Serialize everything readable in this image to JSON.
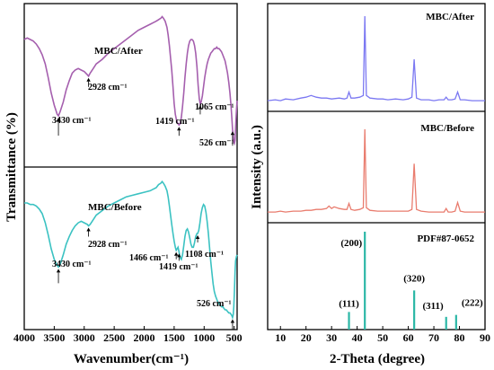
{
  "chart_data": [
    {
      "type": "line",
      "panel": "FTIR",
      "title": "",
      "xlabel": "Wavenumber(cm⁻¹)",
      "ylabel": "Transmittance (%)",
      "xlim": [
        4000,
        450
      ],
      "x_reversed": true,
      "xticks": [
        "4000",
        "3500",
        "3000",
        "2500",
        "2000",
        "1500",
        "1000",
        "500"
      ],
      "series": [
        {
          "name": "MBC/After",
          "color": "#a55fae",
          "x": [
            4000,
            3950,
            3900,
            3850,
            3800,
            3750,
            3700,
            3650,
            3600,
            3550,
            3500,
            3450,
            3430,
            3400,
            3350,
            3300,
            3250,
            3200,
            3150,
            3100,
            3050,
            3000,
            2950,
            2928,
            2900,
            2850,
            2800,
            2700,
            2600,
            2500,
            2400,
            2300,
            2200,
            2100,
            2000,
            1900,
            1850,
            1800,
            1760,
            1720,
            1700,
            1680,
            1650,
            1620,
            1600,
            1580,
            1560,
            1540,
            1520,
            1500,
            1480,
            1460,
            1440,
            1419,
            1400,
            1380,
            1360,
            1340,
            1320,
            1300,
            1280,
            1260,
            1240,
            1220,
            1200,
            1180,
            1160,
            1140,
            1120,
            1100,
            1080,
            1065,
            1050,
            1030,
            1010,
            990,
            970,
            950,
            930,
            910,
            890,
            870,
            850,
            830,
            810,
            790,
            770,
            750,
            730,
            710,
            690,
            670,
            650,
            630,
            610,
            590,
            570,
            550,
            535,
            526,
            515,
            505,
            495,
            485,
            475,
            460,
            450
          ],
          "y": [
            0.8,
            0.81,
            0.8,
            0.79,
            0.77,
            0.74,
            0.7,
            0.64,
            0.55,
            0.45,
            0.37,
            0.31,
            0.3,
            0.33,
            0.39,
            0.47,
            0.53,
            0.58,
            0.6,
            0.61,
            0.6,
            0.59,
            0.57,
            0.56,
            0.58,
            0.61,
            0.64,
            0.67,
            0.71,
            0.74,
            0.77,
            0.8,
            0.83,
            0.86,
            0.88,
            0.9,
            0.91,
            0.92,
            0.93,
            0.94,
            0.95,
            0.94,
            0.92,
            0.88,
            0.83,
            0.76,
            0.68,
            0.6,
            0.49,
            0.38,
            0.31,
            0.27,
            0.25,
            0.24,
            0.25,
            0.29,
            0.36,
            0.45,
            0.55,
            0.64,
            0.71,
            0.76,
            0.79,
            0.8,
            0.8,
            0.79,
            0.76,
            0.71,
            0.62,
            0.5,
            0.41,
            0.38,
            0.39,
            0.43,
            0.49,
            0.55,
            0.6,
            0.64,
            0.67,
            0.69,
            0.71,
            0.72,
            0.73,
            0.74,
            0.74,
            0.75,
            0.74,
            0.74,
            0.73,
            0.72,
            0.7,
            0.68,
            0.66,
            0.62,
            0.58,
            0.52,
            0.45,
            0.36,
            0.27,
            0.21,
            0.17,
            0.13,
            0.12,
            0.14,
            0.22,
            0.34,
            0.4
          ]
        },
        {
          "name": "MBC/Before",
          "color": "#3bc2c2",
          "x": [
            4000,
            3950,
            3900,
            3850,
            3800,
            3750,
            3700,
            3650,
            3600,
            3550,
            3500,
            3450,
            3430,
            3400,
            3350,
            3300,
            3250,
            3200,
            3150,
            3100,
            3050,
            3000,
            2950,
            2928,
            2900,
            2850,
            2800,
            2700,
            2600,
            2500,
            2400,
            2300,
            2200,
            2100,
            2000,
            1900,
            1850,
            1800,
            1760,
            1720,
            1700,
            1680,
            1650,
            1620,
            1600,
            1580,
            1560,
            1540,
            1520,
            1500,
            1480,
            1466,
            1450,
            1435,
            1419,
            1400,
            1380,
            1360,
            1340,
            1320,
            1300,
            1280,
            1260,
            1240,
            1220,
            1200,
            1180,
            1160,
            1140,
            1120,
            1108,
            1090,
            1070,
            1050,
            1030,
            1010,
            990,
            970,
            950,
            930,
            910,
            890,
            870,
            850,
            830,
            810,
            790,
            770,
            750,
            730,
            710,
            690,
            670,
            650,
            630,
            610,
            590,
            570,
            550,
            535,
            526,
            515,
            505,
            495,
            485,
            475,
            460,
            450
          ],
          "y": [
            0.8,
            0.8,
            0.79,
            0.79,
            0.78,
            0.76,
            0.73,
            0.67,
            0.59,
            0.5,
            0.43,
            0.39,
            0.38,
            0.4,
            0.46,
            0.53,
            0.58,
            0.62,
            0.65,
            0.67,
            0.68,
            0.67,
            0.66,
            0.65,
            0.66,
            0.69,
            0.72,
            0.75,
            0.78,
            0.8,
            0.82,
            0.84,
            0.85,
            0.86,
            0.87,
            0.88,
            0.89,
            0.9,
            0.92,
            0.93,
            0.94,
            0.93,
            0.91,
            0.88,
            0.84,
            0.78,
            0.72,
            0.66,
            0.6,
            0.55,
            0.51,
            0.49,
            0.5,
            0.51,
            0.48,
            0.44,
            0.43,
            0.46,
            0.52,
            0.58,
            0.62,
            0.63,
            0.61,
            0.57,
            0.53,
            0.51,
            0.51,
            0.54,
            0.58,
            0.6,
            0.6,
            0.62,
            0.67,
            0.73,
            0.77,
            0.79,
            0.78,
            0.74,
            0.68,
            0.6,
            0.51,
            0.42,
            0.34,
            0.27,
            0.22,
            0.19,
            0.17,
            0.15,
            0.14,
            0.13,
            0.12,
            0.12,
            0.11,
            0.1,
            0.1,
            0.09,
            0.08,
            0.08,
            0.07,
            0.06,
            0.05,
            0.07,
            0.12,
            0.22,
            0.35,
            0.42,
            0.45,
            0.46
          ]
        }
      ],
      "annotations": [
        {
          "series": "MBC/After",
          "text": "3430 cm⁻¹",
          "x": 3430
        },
        {
          "series": "MBC/After",
          "text": "2928 cm⁻¹",
          "x": 2928
        },
        {
          "series": "MBC/After",
          "text": "1419 cm⁻¹",
          "x": 1419
        },
        {
          "series": "MBC/After",
          "text": "1065 cm⁻¹",
          "x": 1065
        },
        {
          "series": "MBC/After",
          "text": "526 cm⁻¹",
          "x": 526
        },
        {
          "series": "MBC/Before",
          "text": "3430 cm⁻¹",
          "x": 3430
        },
        {
          "series": "MBC/Before",
          "text": "2928 cm⁻¹",
          "x": 2928
        },
        {
          "series": "MBC/Before",
          "text": "1466 cm⁻¹",
          "x": 1466
        },
        {
          "series": "MBC/Before",
          "text": "1419 cm⁻¹",
          "x": 1419
        },
        {
          "series": "MBC/Before",
          "text": "1108 cm⁻¹",
          "x": 1108
        },
        {
          "series": "MBC/Before",
          "text": "526 cm⁻¹",
          "x": 526
        }
      ]
    },
    {
      "type": "line",
      "panel": "XRD",
      "title": "",
      "xlabel": "2-Theta (degree)",
      "ylabel": "Intensity (a.u.)",
      "xlim": [
        5,
        90
      ],
      "xticks": [
        "10",
        "20",
        "30",
        "40",
        "50",
        "60",
        "70",
        "80",
        "90"
      ],
      "series": [
        {
          "name": "MBC/After",
          "color": "#7b78f2",
          "x": [
            5,
            8,
            10,
            12,
            15,
            18,
            20,
            22,
            23,
            24,
            26,
            28,
            30,
            33,
            35,
            36,
            36.8,
            37.6,
            39,
            41,
            42.4,
            43.0,
            43.6,
            45,
            48,
            50,
            52,
            55,
            58,
            60,
            61.4,
            62.3,
            63.2,
            65,
            68,
            70,
            72,
            74,
            74.8,
            75.6,
            77,
            78.3,
            79.3,
            80.3,
            82,
            85,
            88,
            90
          ],
          "y": [
            0.02,
            0.03,
            0.02,
            0.04,
            0.03,
            0.05,
            0.06,
            0.08,
            0.07,
            0.06,
            0.05,
            0.05,
            0.04,
            0.05,
            0.04,
            0.05,
            0.12,
            0.05,
            0.05,
            0.06,
            0.08,
            1.0,
            0.08,
            0.05,
            0.04,
            0.04,
            0.03,
            0.04,
            0.03,
            0.04,
            0.06,
            0.5,
            0.05,
            0.03,
            0.03,
            0.02,
            0.03,
            0.03,
            0.06,
            0.03,
            0.03,
            0.04,
            0.12,
            0.03,
            0.03,
            0.02,
            0.02,
            0.02
          ]
        },
        {
          "name": "MBC/Before",
          "color": "#e97c6e",
          "x": [
            5,
            8,
            10,
            12,
            15,
            18,
            20,
            22,
            24,
            26,
            28,
            29,
            30,
            31,
            33,
            35,
            36,
            36.8,
            37.6,
            39,
            41,
            42.4,
            43.0,
            43.6,
            45,
            48,
            50,
            52,
            55,
            58,
            60,
            61.4,
            62.3,
            63.2,
            65,
            68,
            70,
            72,
            74,
            74.8,
            75.6,
            77,
            78.3,
            79.3,
            80.3,
            82,
            85,
            88,
            90
          ],
          "y": [
            0.02,
            0.02,
            0.03,
            0.02,
            0.03,
            0.03,
            0.04,
            0.04,
            0.05,
            0.05,
            0.06,
            0.09,
            0.06,
            0.08,
            0.06,
            0.05,
            0.05,
            0.12,
            0.05,
            0.04,
            0.05,
            0.07,
            0.98,
            0.07,
            0.04,
            0.03,
            0.03,
            0.03,
            0.03,
            0.03,
            0.03,
            0.05,
            0.58,
            0.05,
            0.03,
            0.02,
            0.02,
            0.02,
            0.02,
            0.06,
            0.02,
            0.02,
            0.03,
            0.13,
            0.03,
            0.02,
            0.02,
            0.02,
            0.02
          ]
        },
        {
          "name": "PDF#87-0652",
          "type": "stick",
          "color": "#2bb7a6",
          "x": [
            36.8,
            43.0,
            62.3,
            74.8,
            78.7
          ],
          "y": [
            0.18,
            1.0,
            0.4,
            0.13,
            0.15
          ],
          "labels": [
            "(111)",
            "(200)",
            "(320)",
            "(311)",
            "(222)"
          ]
        }
      ]
    }
  ]
}
